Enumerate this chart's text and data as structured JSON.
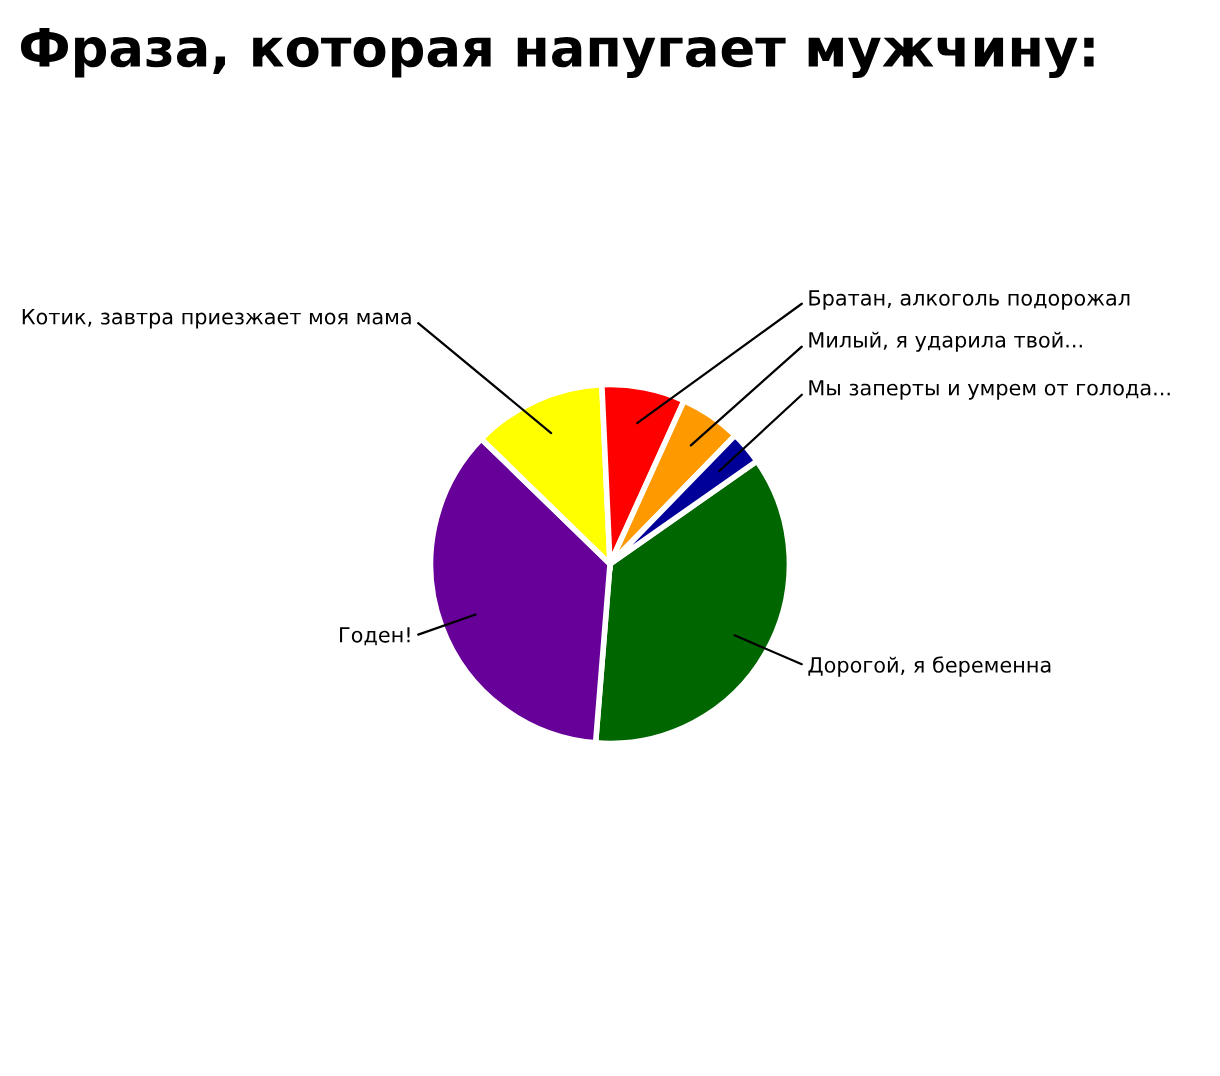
{
  "chart_data": {
    "type": "pie",
    "title": "Фраза, которая напугает мужчину:",
    "categories": [
      "Дорогой, я беременна",
      "Годен!",
      "Котик, завтра приезжает моя мама",
      "Братан, алкоголь подорожал",
      "Милый, я ударила твой...",
      "Мы заперты и умрем от голода..."
    ],
    "values": [
      36,
      36,
      12,
      7.5,
      5.5,
      3
    ],
    "colors": [
      "#006600",
      "#660099",
      "#ffff00",
      "#ff0000",
      "#ff9900",
      "#000099"
    ]
  }
}
